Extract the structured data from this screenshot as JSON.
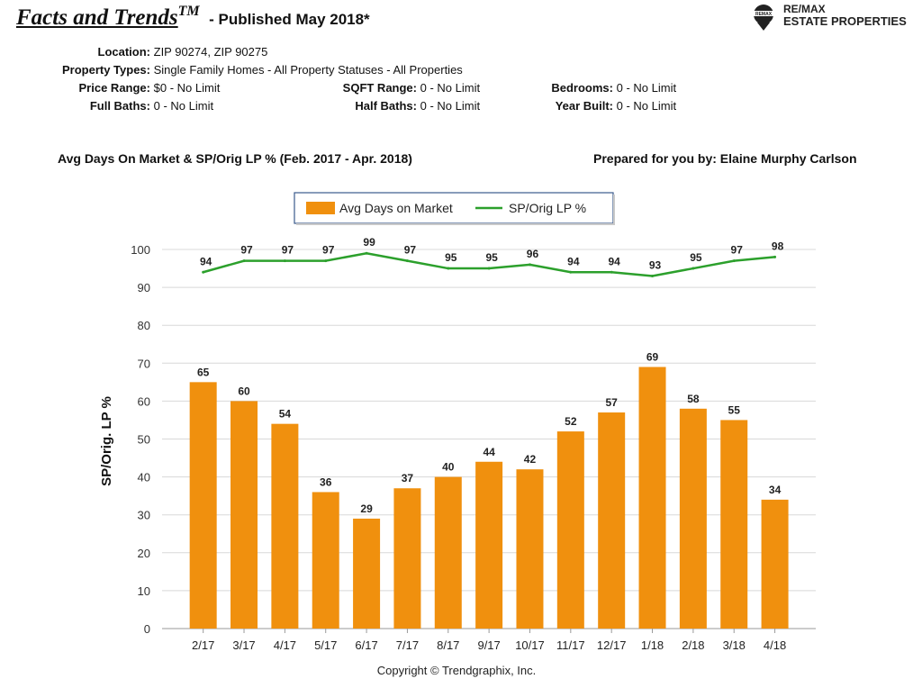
{
  "header": {
    "title": "Facts and Trends",
    "title_tm": "TM",
    "subtitle": "- Published May 2018*",
    "brand_line1": "RE/MAX",
    "brand_line2": "ESTATE PROPERTIES",
    "brand_logo_text": "REMAX"
  },
  "criteria": {
    "location_label": "Location:",
    "location": "ZIP 90274, ZIP 90275",
    "property_types_label": "Property Types:",
    "property_types": "Single Family Homes - All Property Statuses - All Properties",
    "price_range_label": "Price Range:",
    "price_range": "$0 - No Limit",
    "sqft_range_label": "SQFT Range:",
    "sqft_range": "0 - No Limit",
    "bedrooms_label": "Bedrooms:",
    "bedrooms": "0 - No Limit",
    "full_baths_label": "Full Baths:",
    "full_baths": "0 - No Limit",
    "half_baths_label": "Half Baths:",
    "half_baths": "0 - No Limit",
    "year_built_label": "Year Built:",
    "year_built": "0 - No Limit"
  },
  "chart_heading": "Avg Days On Market & SP/Orig LP % (Feb. 2017 - Apr. 2018)",
  "prepared_by": "Prepared for you by: Elaine Murphy Carlson",
  "copyright": "Copyright © Trendgraphix, Inc.",
  "colors": {
    "bar": "#f0900e",
    "line": "#2ca02c",
    "legend_border": "#3a5a8c"
  },
  "chart_data": {
    "type": "bar",
    "categories": [
      "2/17",
      "3/17",
      "4/17",
      "5/17",
      "6/17",
      "7/17",
      "8/17",
      "9/17",
      "10/17",
      "11/17",
      "12/17",
      "1/18",
      "2/18",
      "3/18",
      "4/18"
    ],
    "series": [
      {
        "name": "Avg Days on Market",
        "type": "bar",
        "values": [
          65,
          60,
          54,
          36,
          29,
          37,
          40,
          44,
          42,
          52,
          57,
          69,
          58,
          55,
          34
        ]
      },
      {
        "name": "SP/Orig LP %",
        "type": "line",
        "values": [
          94,
          97,
          97,
          97,
          99,
          97,
          95,
          95,
          96,
          94,
          94,
          93,
          95,
          97,
          98
        ]
      }
    ],
    "ylabel": "SP/Orig. LP %",
    "ylim": [
      0,
      100
    ],
    "yticks": [
      0,
      10,
      20,
      30,
      40,
      50,
      60,
      70,
      80,
      90,
      100
    ],
    "grid": true,
    "legend": "top-center"
  }
}
